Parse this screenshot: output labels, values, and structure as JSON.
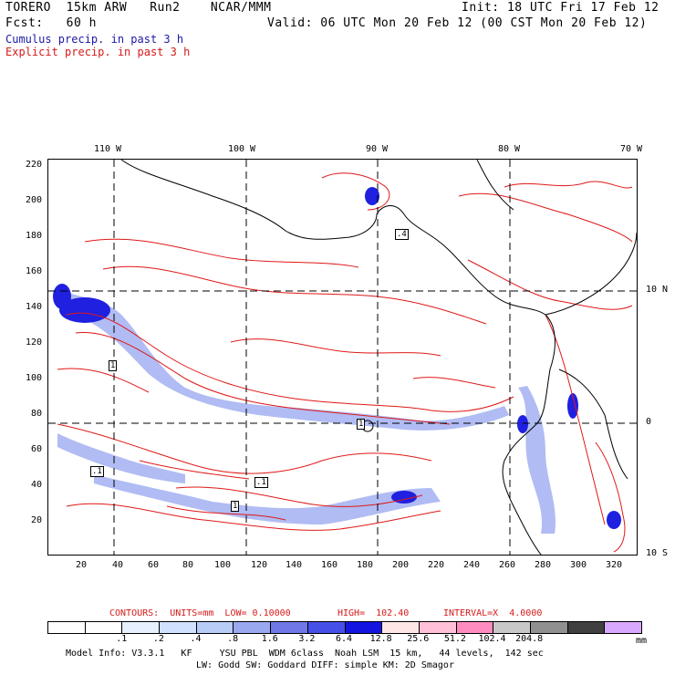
{
  "header": {
    "line1_left": "TORERO  15km ARW   Run2    NCAR/MMM",
    "line1_right": "Init: 18 UTC Fri 17 Feb 12",
    "line2_left": "Fcst:   60 h",
    "line2_right": "Valid: 06 UTC Mon 20 Feb 12 (00 CST Mon 20 Feb 12)",
    "line3": "Cumulus precip. in past 3 h",
    "line4": "Explicit precip. in past 3 h"
  },
  "map": {
    "lon_labels": [
      "110 W",
      "100 W",
      "90 W",
      "80 W",
      "70 W"
    ],
    "lat_labels": [
      "10 N",
      "0",
      "10 S"
    ],
    "y_ticks": [
      "220",
      "200",
      "180",
      "160",
      "140",
      "120",
      "100",
      "80",
      "60",
      "40",
      "20"
    ],
    "x_ticks": [
      "20",
      "40",
      "60",
      "80",
      "100",
      "120",
      "140",
      "160",
      "180",
      "200",
      "220",
      "240",
      "260",
      "280",
      "300",
      "320"
    ],
    "box_labels": [
      "1",
      "1",
      ".1",
      ".1",
      ".4",
      "1"
    ]
  },
  "contours_line": {
    "label": "CONTOURS:  UNITS=mm  LOW= 0.10000",
    "high": "HIGH=  102.40",
    "interval": "INTERVAL=X  4.0000"
  },
  "colorbar": {
    "colors": [
      "#ffffff",
      "#ffffff",
      "#e6f0ff",
      "#d0e0ff",
      "#b8ccf8",
      "#9aa8f0",
      "#6f78e6",
      "#4650e8",
      "#1414e0",
      "#ffe6e6",
      "#ffc0d8",
      "#ff8cc0",
      "#c8c8c8",
      "#909090",
      "#404040",
      "#d8a8ff"
    ],
    "labels": [
      ".1",
      ".2",
      ".4",
      ".8",
      "1.6",
      "3.2",
      "6.4",
      "12.8",
      "25.6",
      "51.2",
      "102.4",
      "204.8"
    ],
    "unit": "mm"
  },
  "footer": {
    "line1": "Model Info: V3.3.1   KF     YSU PBL  WDM 6class  Noah LSM  15 km,   44 levels,  142 sec",
    "line2": "LW: Godd SW: Goddard DIFF: simple KM: 2D Smagor"
  }
}
